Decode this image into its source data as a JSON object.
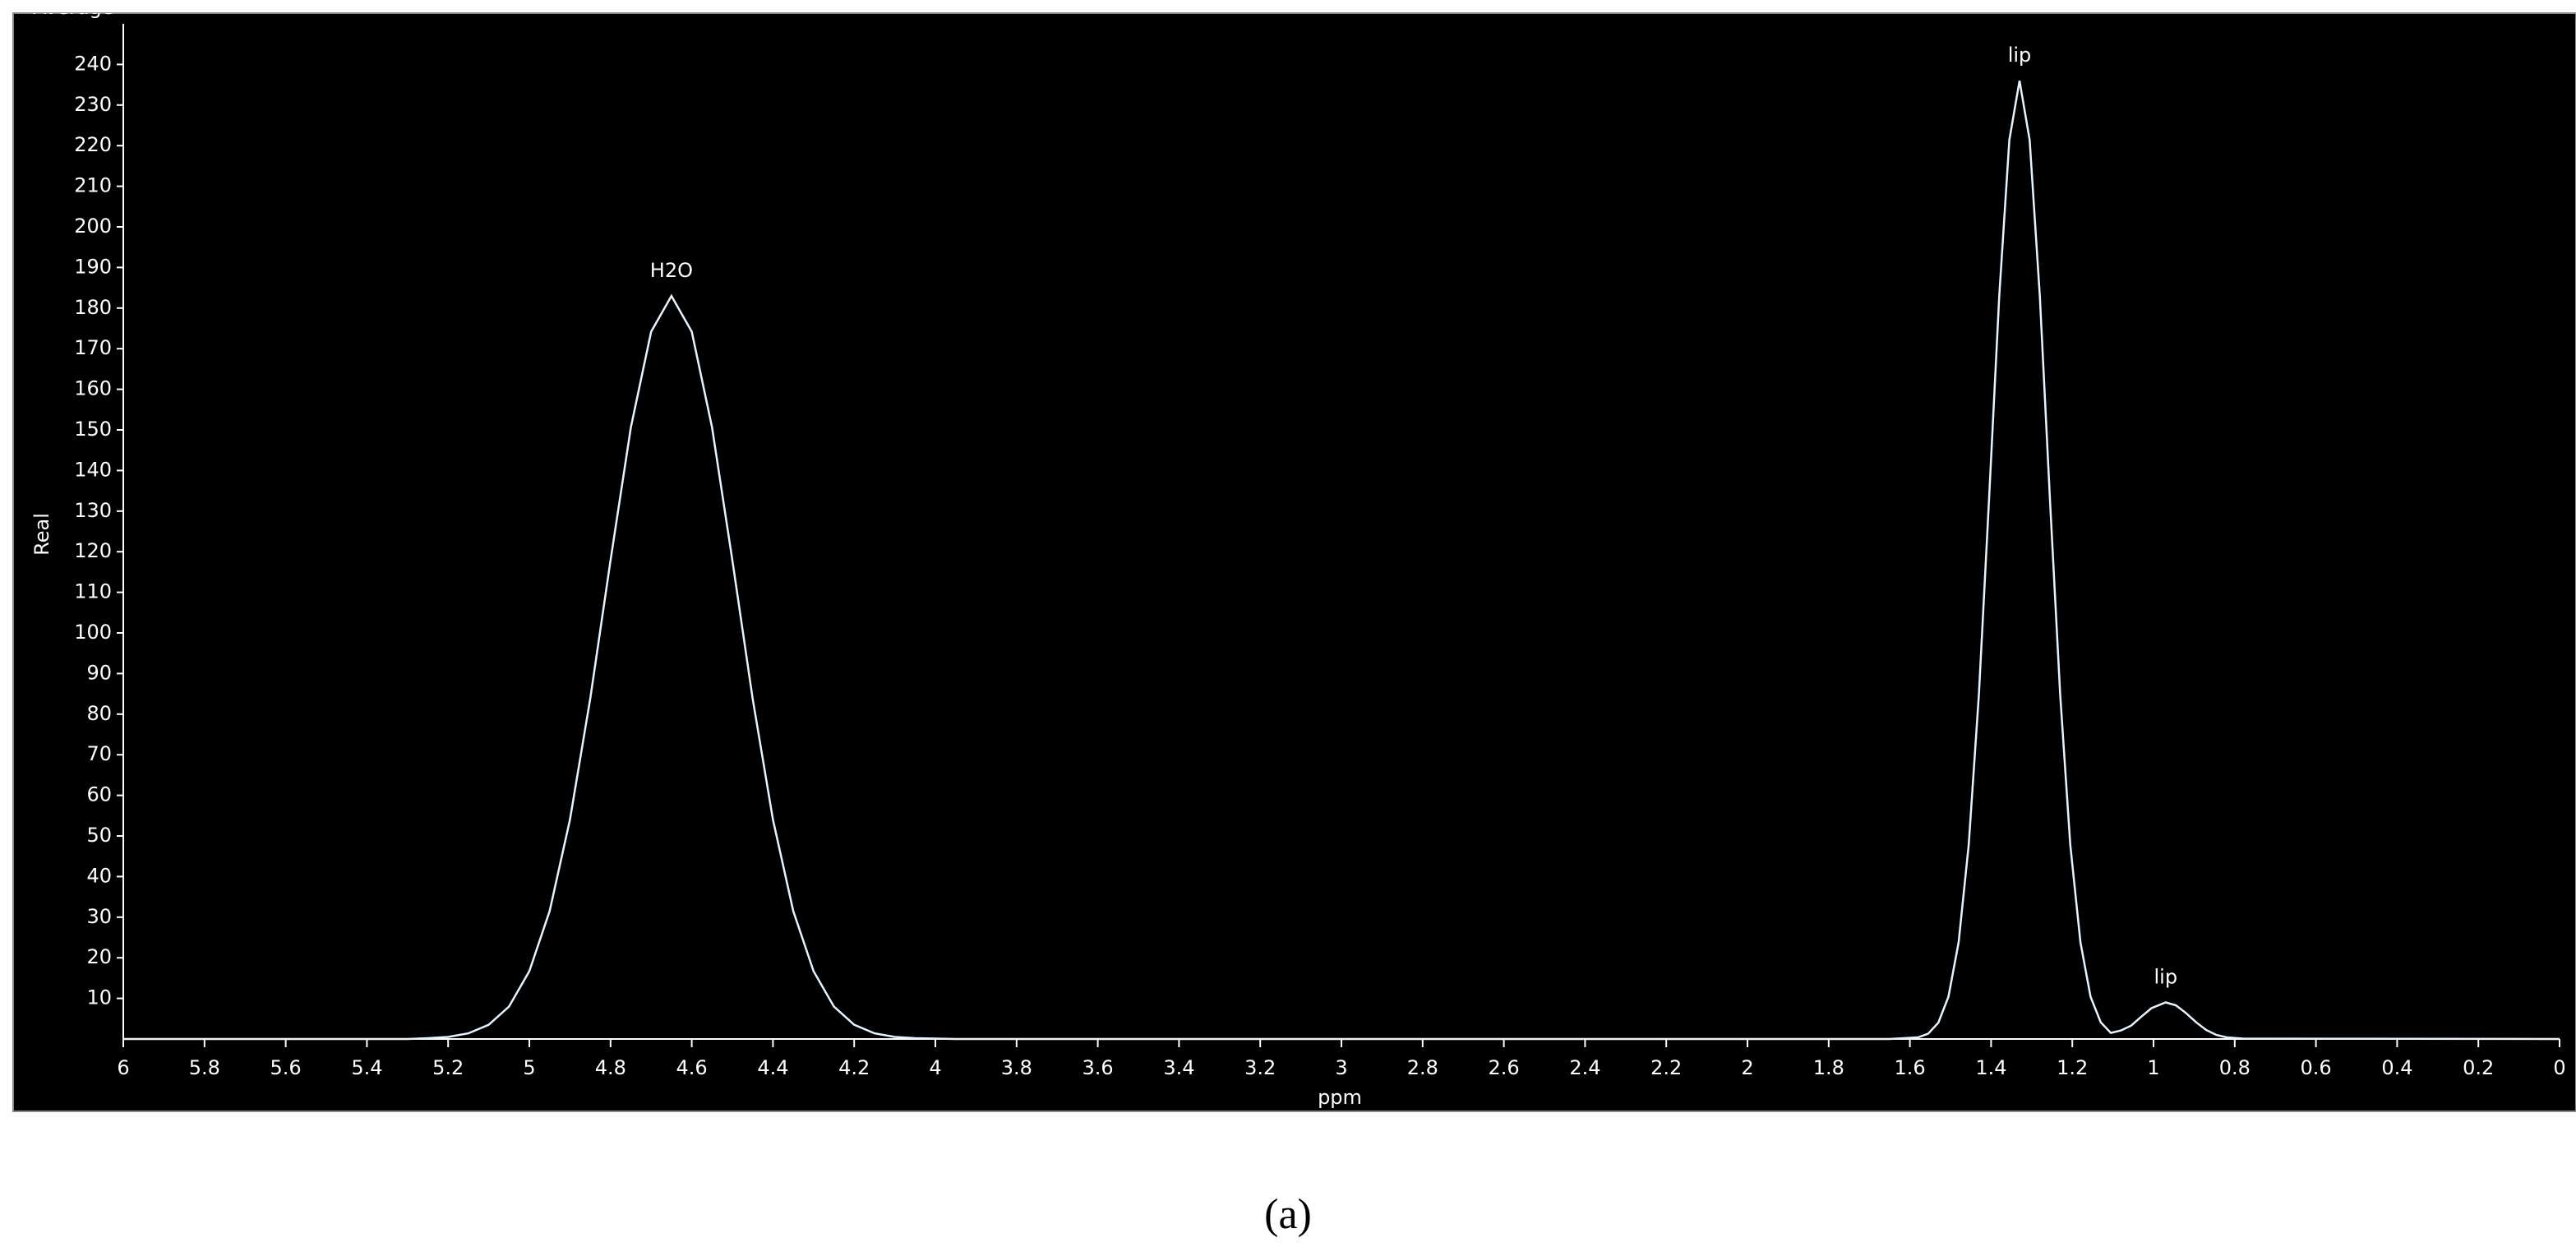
{
  "chart_data": {
    "type": "line",
    "title": "Average",
    "xlabel": "ppm",
    "ylabel": "Real",
    "caption": "(a)",
    "x": [
      6,
      5.3,
      5.25,
      5.2,
      5.15,
      5.1,
      5.05,
      5,
      4.95,
      4.9,
      4.85,
      4.8,
      4.75,
      4.7,
      4.65,
      4.6,
      4.55,
      4.5,
      4.45,
      4.4,
      4.35,
      4.3,
      4.25,
      4.2,
      4.15,
      4.1,
      4.05,
      3.95,
      1.65,
      1.58,
      1.555,
      1.53,
      1.505,
      1.48,
      1.455,
      1.43,
      1.405,
      1.38,
      1.355,
      1.33,
      1.305,
      1.28,
      1.255,
      1.23,
      1.205,
      1.18,
      1.155,
      1.13,
      1.105,
      1.08,
      1.055,
      1.03,
      1.005,
      0.97,
      0.945,
      0.92,
      0.895,
      0.87,
      0.845,
      0.82,
      0.78,
      0
    ],
    "values": [
      0,
      0,
      0.2,
      0.5,
      1.4,
      3.5,
      8,
      16.7,
      31.5,
      54,
      83.8,
      117.9,
      150.6,
      174.2,
      183,
      174.2,
      150.6,
      117.9,
      83.8,
      54,
      31.5,
      16.7,
      8,
      3.5,
      1.4,
      0.5,
      0.2,
      0,
      0,
      0.4,
      1.3,
      4,
      10.4,
      23.8,
      47.9,
      85,
      132.9,
      182.9,
      221.4,
      236,
      221.4,
      182.9,
      132.9,
      85,
      47.9,
      23.8,
      10.4,
      4.1,
      1.5,
      2.1,
      3.3,
      5.5,
      7.6,
      9,
      8.3,
      6.4,
      4.1,
      2.2,
      1,
      0.4,
      0.1,
      0
    ],
    "color": "#e6f4ff",
    "annotations": [
      {
        "label": "H2O",
        "x": 4.65,
        "y": 183
      },
      {
        "label": "lip",
        "x": 1.33,
        "y": 236
      },
      {
        "label": "lip",
        "x": 0.97,
        "y": 9
      }
    ],
    "xlim": [
      6,
      0
    ],
    "ylim": [
      0,
      250
    ],
    "xticks": [
      6,
      5.8,
      5.6,
      5.4,
      5.2,
      5,
      4.8,
      4.6,
      4.4,
      4.2,
      4,
      3.8,
      3.6,
      3.4,
      3.2,
      3,
      2.8,
      2.6,
      2.4,
      2.2,
      2,
      1.8,
      1.6,
      1.4,
      1.2,
      1,
      0.8,
      0.6,
      0.4,
      0.2,
      0
    ],
    "yticks": [
      10,
      20,
      30,
      40,
      50,
      60,
      70,
      80,
      90,
      100,
      110,
      120,
      130,
      140,
      150,
      160,
      170,
      180,
      190,
      200,
      210,
      220,
      230,
      240
    ]
  }
}
